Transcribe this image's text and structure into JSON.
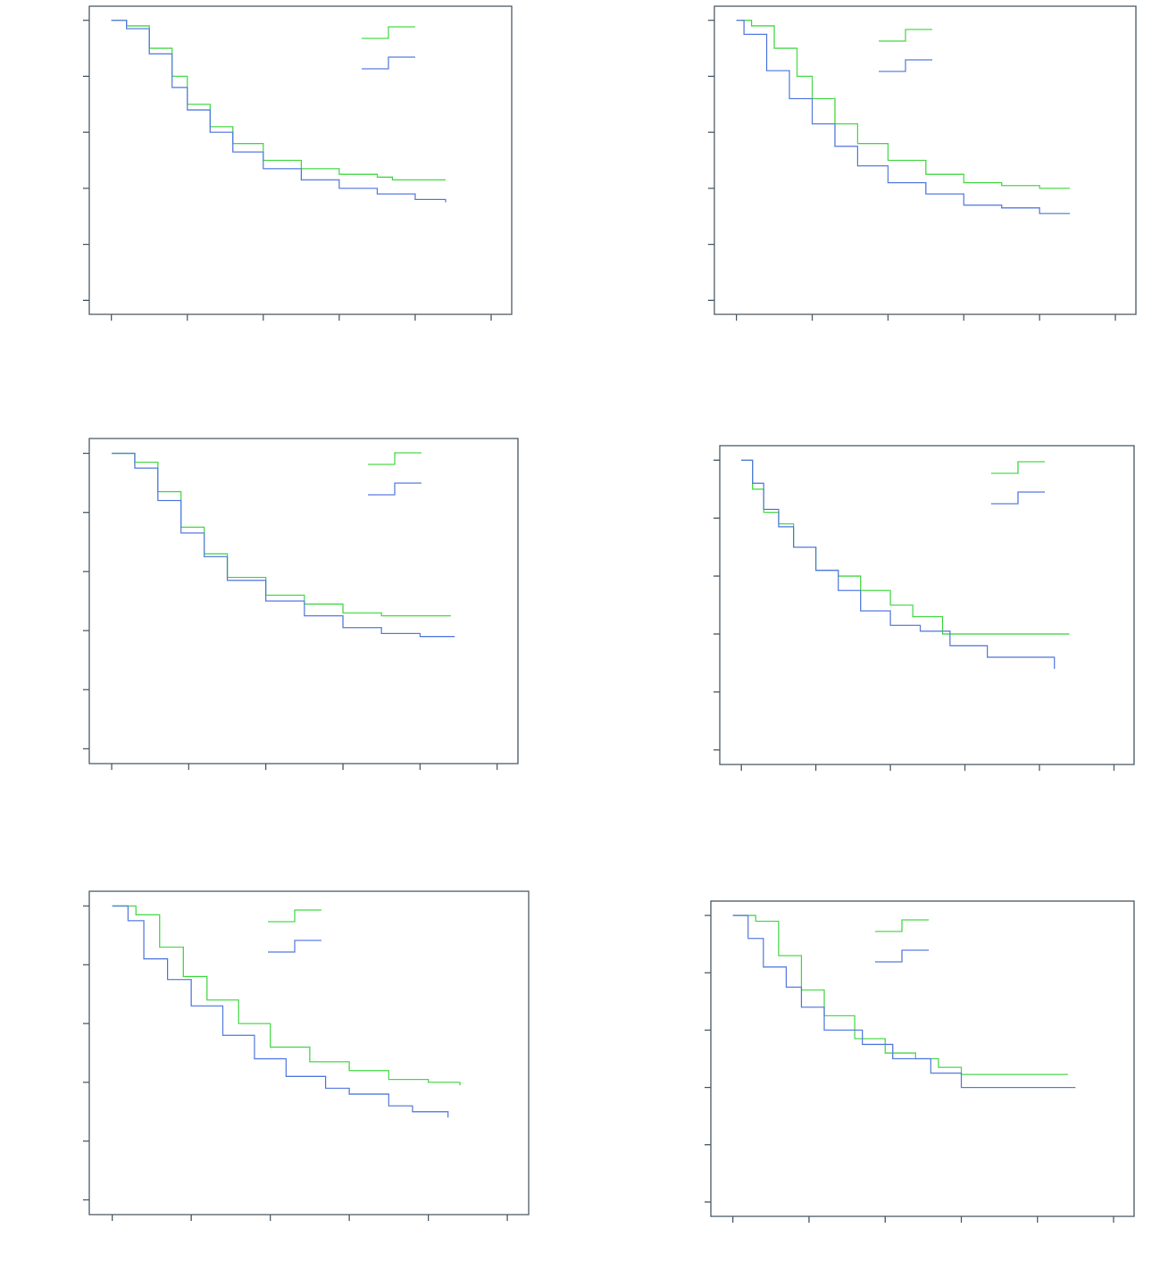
{
  "chart_data": [
    {
      "type": "line",
      "step": true,
      "xlim": [
        -0.29,
        5.27
      ],
      "ylim": [
        -0.05,
        1.05
      ],
      "xticks": [
        0,
        1,
        2,
        3,
        4,
        5
      ],
      "yticks": [
        0,
        0.2,
        0.4,
        0.6,
        0.8,
        1
      ],
      "series": [
        {
          "color": "#4ad94a",
          "x": [
            0,
            0.2,
            0.5,
            0.8,
            1.0,
            1.3,
            1.6,
            2.0,
            2.5,
            3.0,
            3.5,
            3.7,
            4.4
          ],
          "values": [
            1,
            0.98,
            0.9,
            0.8,
            0.7,
            0.62,
            0.56,
            0.5,
            0.47,
            0.45,
            0.44,
            0.43,
            0.43
          ]
        },
        {
          "color": "#5a7ee0",
          "x": [
            0,
            0.2,
            0.5,
            0.8,
            1.0,
            1.3,
            1.6,
            2.0,
            2.5,
            3.0,
            3.5,
            4.0,
            4.4
          ],
          "values": [
            1,
            0.97,
            0.88,
            0.76,
            0.68,
            0.6,
            0.53,
            0.47,
            0.43,
            0.4,
            0.38,
            0.36,
            0.35
          ]
        }
      ]
    },
    {
      "type": "line",
      "step": true,
      "xlim": [
        -0.29,
        5.27
      ],
      "ylim": [
        -0.05,
        1.05
      ],
      "xticks": [
        0,
        1,
        2,
        3,
        4,
        5
      ],
      "yticks": [
        0,
        0.2,
        0.4,
        0.6,
        0.8,
        1
      ],
      "series": [
        {
          "color": "#4ad94a",
          "x": [
            0,
            0.2,
            0.5,
            0.8,
            1.0,
            1.3,
            1.6,
            2.0,
            2.5,
            3.0,
            3.5,
            4.0,
            4.4
          ],
          "values": [
            1,
            0.98,
            0.9,
            0.8,
            0.72,
            0.63,
            0.56,
            0.5,
            0.45,
            0.42,
            0.41,
            0.4,
            0.4
          ]
        },
        {
          "color": "#5a7ee0",
          "x": [
            0,
            0.1,
            0.4,
            0.7,
            1.0,
            1.3,
            1.6,
            2.0,
            2.5,
            3.0,
            3.5,
            4.0,
            4.4
          ],
          "values": [
            1,
            0.95,
            0.82,
            0.72,
            0.63,
            0.55,
            0.48,
            0.42,
            0.38,
            0.34,
            0.33,
            0.31,
            0.31
          ]
        }
      ]
    },
    {
      "type": "line",
      "step": true,
      "xlim": [
        -0.29,
        5.27
      ],
      "ylim": [
        -0.05,
        1.05
      ],
      "xticks": [
        0,
        1,
        2,
        3,
        4,
        5
      ],
      "yticks": [
        0,
        0.2,
        0.4,
        0.6,
        0.8,
        1
      ],
      "series": [
        {
          "color": "#4ad94a",
          "x": [
            0,
            0.3,
            0.6,
            0.9,
            1.2,
            1.5,
            2.0,
            2.5,
            3.0,
            3.5,
            4.4
          ],
          "values": [
            1,
            0.97,
            0.87,
            0.75,
            0.66,
            0.58,
            0.52,
            0.49,
            0.46,
            0.45,
            0.45
          ]
        },
        {
          "color": "#5a7ee0",
          "x": [
            0,
            0.3,
            0.6,
            0.9,
            1.2,
            1.5,
            2.0,
            2.5,
            3.0,
            3.5,
            4.0,
            4.45
          ],
          "values": [
            1,
            0.95,
            0.84,
            0.73,
            0.65,
            0.57,
            0.5,
            0.45,
            0.41,
            0.39,
            0.38,
            0.38
          ]
        }
      ]
    },
    {
      "type": "line",
      "step": true,
      "xlim": [
        -0.29,
        5.27
      ],
      "ylim": [
        -0.05,
        1.05
      ],
      "xticks": [
        0,
        1,
        2,
        3,
        4,
        5
      ],
      "yticks": [
        0,
        0.2,
        0.4,
        0.6,
        0.8,
        1
      ],
      "series": [
        {
          "color": "#4ad94a",
          "x": [
            0,
            0.15,
            0.3,
            0.5,
            0.7,
            1.0,
            1.3,
            1.6,
            2.0,
            2.3,
            2.7,
            4.4
          ],
          "values": [
            1,
            0.9,
            0.82,
            0.78,
            0.7,
            0.62,
            0.6,
            0.55,
            0.5,
            0.46,
            0.4,
            0.4
          ]
        },
        {
          "color": "#5a7ee0",
          "x": [
            0,
            0.15,
            0.3,
            0.5,
            0.7,
            1.0,
            1.3,
            1.6,
            2.0,
            2.4,
            2.8,
            3.3,
            4.2
          ],
          "values": [
            1,
            0.92,
            0.83,
            0.77,
            0.7,
            0.62,
            0.55,
            0.48,
            0.43,
            0.41,
            0.36,
            0.32,
            0.28
          ]
        }
      ]
    },
    {
      "type": "line",
      "step": true,
      "xlim": [
        -0.29,
        5.27
      ],
      "ylim": [
        -0.05,
        1.05
      ],
      "xticks": [
        0,
        1,
        2,
        3,
        4,
        5
      ],
      "yticks": [
        0,
        0.2,
        0.4,
        0.6,
        0.8,
        1
      ],
      "series": [
        {
          "color": "#4ad94a",
          "x": [
            0,
            0.3,
            0.6,
            0.9,
            1.2,
            1.6,
            2.0,
            2.5,
            3.0,
            3.5,
            4.0,
            4.4
          ],
          "values": [
            1,
            0.97,
            0.86,
            0.76,
            0.68,
            0.6,
            0.52,
            0.47,
            0.44,
            0.41,
            0.4,
            0.39
          ]
        },
        {
          "color": "#5a7ee0",
          "x": [
            0,
            0.2,
            0.4,
            0.7,
            1.0,
            1.4,
            1.8,
            2.2,
            2.7,
            3.0,
            3.5,
            3.8,
            4.25
          ],
          "values": [
            1,
            0.95,
            0.82,
            0.75,
            0.66,
            0.56,
            0.48,
            0.42,
            0.38,
            0.36,
            0.32,
            0.3,
            0.28
          ]
        }
      ]
    },
    {
      "type": "line",
      "step": true,
      "xlim": [
        -0.29,
        5.27
      ],
      "ylim": [
        -0.05,
        1.05
      ],
      "xticks": [
        0,
        1,
        2,
        3,
        4,
        5
      ],
      "yticks": [
        0,
        0.2,
        0.4,
        0.6,
        0.8,
        1
      ],
      "series": [
        {
          "color": "#4ad94a",
          "x": [
            0,
            0.3,
            0.6,
            0.9,
            1.2,
            1.6,
            2.0,
            2.4,
            2.7,
            3.0,
            4.4
          ],
          "values": [
            1,
            0.98,
            0.86,
            0.74,
            0.65,
            0.57,
            0.52,
            0.5,
            0.47,
            0.445,
            0.445
          ]
        },
        {
          "color": "#5a7ee0",
          "x": [
            0,
            0.2,
            0.4,
            0.7,
            0.9,
            1.2,
            1.7,
            2.1,
            2.6,
            3.0,
            3.7,
            4.5
          ],
          "values": [
            1,
            0.92,
            0.82,
            0.75,
            0.68,
            0.6,
            0.55,
            0.5,
            0.45,
            0.4,
            0.4,
            0.4
          ]
        }
      ]
    }
  ]
}
